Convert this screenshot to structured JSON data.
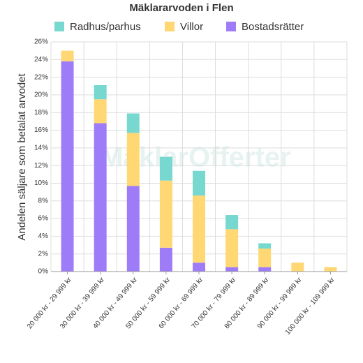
{
  "chart_data": {
    "type": "stacked-bar",
    "title": "Mäklararvoden i Flen",
    "ylabel": "Andelen säljare som betalat arvodet",
    "watermark": "MäklarOfferter",
    "categories": [
      "20 000 kr - 29 999 kr",
      "30 000 kr - 39 999 kr",
      "40 000 kr - 49 999 kr",
      "50 000 kr - 59 999 kr",
      "60 000 kr - 69 999 kr",
      "70 000 kr - 79 999 kr",
      "80 000 kr - 89 999 kr",
      "90 000 kr - 99 999 kr",
      "100 000 kr - 109 999 kr"
    ],
    "series": [
      {
        "name": "Radhus/parhus",
        "color": "#76d8cf",
        "values": [
          0,
          1.6,
          2.2,
          2.7,
          2.8,
          1.6,
          0.6,
          0,
          0
        ]
      },
      {
        "name": "Villor",
        "color": "#ffd773",
        "values": [
          1.2,
          2.7,
          6.0,
          7.6,
          7.6,
          4.3,
          2.1,
          1.0,
          0.5
        ]
      },
      {
        "name": "Bostadsrätter",
        "color": "#9f7cf7",
        "values": [
          23.8,
          16.8,
          9.7,
          2.7,
          1.0,
          0.5,
          0.5,
          0,
          0
        ]
      }
    ],
    "ylim": [
      0,
      26
    ],
    "yticks": [
      {
        "value": 0,
        "label": "0%"
      },
      {
        "value": 2,
        "label": "2%"
      },
      {
        "value": 4,
        "label": "4%"
      },
      {
        "value": 6,
        "label": "6%"
      },
      {
        "value": 8,
        "label": "8%"
      },
      {
        "value": 10,
        "label": "10%"
      },
      {
        "value": 12,
        "label": "12%"
      },
      {
        "value": 14,
        "label": "14%"
      },
      {
        "value": 16,
        "label": "16%"
      },
      {
        "value": 18,
        "label": "18%"
      },
      {
        "value": 20,
        "label": "20%"
      },
      {
        "value": 22,
        "label": "22%"
      },
      {
        "value": 24,
        "label": "24%"
      },
      {
        "value": 26,
        "label": "26%"
      }
    ],
    "grid": true,
    "legend": "top"
  }
}
